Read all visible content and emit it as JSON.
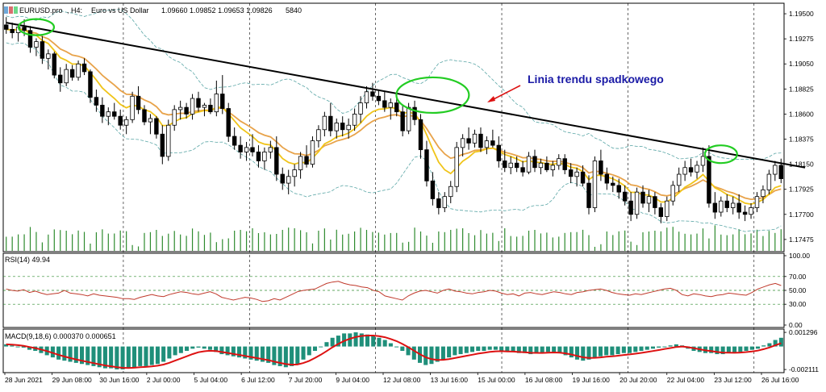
{
  "header": {
    "symbol": "EURUSD.pro",
    "timeframe": "H4",
    "description": "Euro vs US Dollar",
    "ohlc": "1.09660 1.09852 1.09653 1.09826",
    "volume": "5840"
  },
  "colors": {
    "bull": "#ffffff",
    "bear": "#000000",
    "ma_fast": "#f0c419",
    "ma_slow": "#e8a34a",
    "bands": "#5aa6a6",
    "trendline": "#000000",
    "circles": "#22cc22",
    "arrow": "#dd1111",
    "annotation": "#1a1aa6",
    "volume": "#2e8b2e",
    "rsi": "#c0392b",
    "macd_hist": "#1f8f7a",
    "macd_signal": "#dd1111",
    "grid": "#000000"
  },
  "annotation": {
    "text": "Linia trendu spadkowego"
  },
  "chart_data": [
    {
      "type": "candlestick",
      "panel": "price",
      "title": "EURUSD.pro, H4: Euro vs US Dollar 1.09660 1.09852 1.09653 1.09826 5840",
      "y_ticks": [
        1.195,
        1.19275,
        1.1905,
        1.18825,
        1.186,
        1.18375,
        1.1815,
        1.17925,
        1.177,
        1.17475
      ],
      "y_tick_labels": [
        "1.19500",
        "1.19275",
        "1.19050",
        "1.18825",
        "1.18600",
        "1.18375",
        "1.18150",
        "1.17925",
        "1.17700",
        "1.17475"
      ],
      "ylim": [
        1.1738,
        1.1958
      ],
      "x_labels": [
        "28 Jun 2021",
        "29 Jun 08:00",
        "30 Jun 16:00",
        "2 Jul 00:00",
        "5 Jul 04:00",
        "6 Jul 12:00",
        "7 Jul 20:00",
        "9 Jul 04:00",
        "12 Jul 08:00",
        "13 Jul 16:00",
        "15 Jul 00:00",
        "16 Jul 08:00",
        "19 Jul 16:00",
        "20 Jul 20:00",
        "22 Jul 04:00",
        "23 Jul 12:00",
        "26 Jul 16:00"
      ],
      "candles": [
        [
          1.194,
          1.1947,
          1.1932,
          1.1936
        ],
        [
          1.1936,
          1.1942,
          1.1928,
          1.1933
        ],
        [
          1.1933,
          1.1941,
          1.1925,
          1.1938
        ],
        [
          1.1938,
          1.1945,
          1.193,
          1.1935
        ],
        [
          1.1935,
          1.1939,
          1.1915,
          1.192
        ],
        [
          1.192,
          1.1928,
          1.1912,
          1.1925
        ],
        [
          1.1925,
          1.193,
          1.1905,
          1.191
        ],
        [
          1.191,
          1.1918,
          1.19,
          1.1914
        ],
        [
          1.1914,
          1.1916,
          1.1892,
          1.1895
        ],
        [
          1.1895,
          1.1902,
          1.188,
          1.1888
        ],
        [
          1.1888,
          1.1905,
          1.1885,
          1.19
        ],
        [
          1.19,
          1.1904,
          1.189,
          1.1893
        ],
        [
          1.1893,
          1.1908,
          1.189,
          1.1905
        ],
        [
          1.1905,
          1.191,
          1.1895,
          1.1898
        ],
        [
          1.1898,
          1.19,
          1.187,
          1.1875
        ],
        [
          1.1875,
          1.1882,
          1.1862,
          1.1868
        ],
        [
          1.1868,
          1.1875,
          1.1852,
          1.1858
        ],
        [
          1.1858,
          1.1866,
          1.185,
          1.1862
        ],
        [
          1.1862,
          1.187,
          1.1855,
          1.1858
        ],
        [
          1.1858,
          1.1864,
          1.1846,
          1.185
        ],
        [
          1.185,
          1.1858,
          1.1842,
          1.1855
        ],
        [
          1.1855,
          1.188,
          1.1852,
          1.1876
        ],
        [
          1.1876,
          1.1885,
          1.186,
          1.1864
        ],
        [
          1.1864,
          1.1868,
          1.185,
          1.1853
        ],
        [
          1.1853,
          1.186,
          1.1842,
          1.1856
        ],
        [
          1.1856,
          1.1858,
          1.1838,
          1.1842
        ],
        [
          1.1842,
          1.185,
          1.1815,
          1.1822
        ],
        [
          1.1822,
          1.1855,
          1.1818,
          1.185
        ],
        [
          1.185,
          1.1868,
          1.1845,
          1.1864
        ],
        [
          1.1864,
          1.1872,
          1.1855,
          1.1866
        ],
        [
          1.1866,
          1.187,
          1.1856,
          1.186
        ],
        [
          1.186,
          1.1878,
          1.1855,
          1.1874
        ],
        [
          1.1874,
          1.188,
          1.1862,
          1.1866
        ],
        [
          1.1866,
          1.187,
          1.1858,
          1.1868
        ],
        [
          1.1868,
          1.1874,
          1.186,
          1.1862
        ],
        [
          1.1862,
          1.189,
          1.1858,
          1.1878
        ],
        [
          1.1878,
          1.1895,
          1.186,
          1.1865
        ],
        [
          1.1865,
          1.187,
          1.1835,
          1.184
        ],
        [
          1.184,
          1.1848,
          1.1828,
          1.1832
        ],
        [
          1.1832,
          1.184,
          1.182,
          1.1826
        ],
        [
          1.1826,
          1.1835,
          1.1818,
          1.183
        ],
        [
          1.183,
          1.1842,
          1.1822,
          1.1826
        ],
        [
          1.1826,
          1.1832,
          1.1812,
          1.1818
        ],
        [
          1.1818,
          1.183,
          1.181,
          1.1826
        ],
        [
          1.1826,
          1.1836,
          1.182,
          1.183
        ],
        [
          1.183,
          1.184,
          1.18,
          1.1806
        ],
        [
          1.1806,
          1.1812,
          1.1792,
          1.1798
        ],
        [
          1.1798,
          1.181,
          1.1788,
          1.1804
        ],
        [
          1.1804,
          1.1815,
          1.1795,
          1.181
        ],
        [
          1.181,
          1.1826,
          1.1802,
          1.1822
        ],
        [
          1.1822,
          1.1832,
          1.1812,
          1.1815
        ],
        [
          1.1815,
          1.184,
          1.1812,
          1.1836
        ],
        [
          1.1836,
          1.185,
          1.183,
          1.1846
        ],
        [
          1.1846,
          1.1862,
          1.184,
          1.1858
        ],
        [
          1.1858,
          1.187,
          1.184,
          1.1845
        ],
        [
          1.1845,
          1.1856,
          1.1838,
          1.1852
        ],
        [
          1.1852,
          1.1858,
          1.184,
          1.1846
        ],
        [
          1.1846,
          1.1856,
          1.1838,
          1.185
        ],
        [
          1.185,
          1.1865,
          1.1845,
          1.186
        ],
        [
          1.186,
          1.1876,
          1.1852,
          1.187
        ],
        [
          1.187,
          1.1885,
          1.1865,
          1.188
        ],
        [
          1.188,
          1.1888,
          1.1872,
          1.1876
        ],
        [
          1.1876,
          1.1882,
          1.1868,
          1.1872
        ],
        [
          1.1872,
          1.188,
          1.1862,
          1.1866
        ],
        [
          1.1866,
          1.1874,
          1.1855,
          1.187
        ],
        [
          1.187,
          1.1876,
          1.1858,
          1.1862
        ],
        [
          1.1862,
          1.1868,
          1.184,
          1.1845
        ],
        [
          1.1845,
          1.187,
          1.1842,
          1.1866
        ],
        [
          1.1866,
          1.1872,
          1.185,
          1.1855
        ],
        [
          1.1855,
          1.186,
          1.182,
          1.1828
        ],
        [
          1.1828,
          1.1836,
          1.1795,
          1.18
        ],
        [
          1.18,
          1.1808,
          1.1778,
          1.1784
        ],
        [
          1.1784,
          1.179,
          1.177,
          1.1776
        ],
        [
          1.1776,
          1.179,
          1.1772,
          1.1786
        ],
        [
          1.1786,
          1.18,
          1.178,
          1.1795
        ],
        [
          1.1795,
          1.1835,
          1.179,
          1.183
        ],
        [
          1.183,
          1.1842,
          1.1822,
          1.1838
        ],
        [
          1.1838,
          1.1848,
          1.1828,
          1.1834
        ],
        [
          1.1834,
          1.1846,
          1.183,
          1.1842
        ],
        [
          1.1842,
          1.1848,
          1.1826,
          1.183
        ],
        [
          1.183,
          1.184,
          1.1824,
          1.1836
        ],
        [
          1.1836,
          1.1846,
          1.183,
          1.1832
        ],
        [
          1.1832,
          1.184,
          1.1812,
          1.1818
        ],
        [
          1.1818,
          1.1828,
          1.1808,
          1.1812
        ],
        [
          1.1812,
          1.1822,
          1.1806,
          1.1816
        ],
        [
          1.1816,
          1.1822,
          1.1808,
          1.1812
        ],
        [
          1.1812,
          1.1818,
          1.1804,
          1.1808
        ],
        [
          1.1808,
          1.1826,
          1.1806,
          1.1822
        ],
        [
          1.1822,
          1.1828,
          1.1808,
          1.1812
        ],
        [
          1.1812,
          1.182,
          1.1806,
          1.1816
        ],
        [
          1.1816,
          1.1822,
          1.1808,
          1.181
        ],
        [
          1.181,
          1.1818,
          1.1804,
          1.1814
        ],
        [
          1.1814,
          1.1824,
          1.181,
          1.182
        ],
        [
          1.182,
          1.1824,
          1.1806,
          1.181
        ],
        [
          1.181,
          1.1816,
          1.1798,
          1.1804
        ],
        [
          1.1804,
          1.1812,
          1.1795,
          1.1808
        ],
        [
          1.1808,
          1.1814,
          1.1795,
          1.1798
        ],
        [
          1.1798,
          1.1805,
          1.177,
          1.1776
        ],
        [
          1.1776,
          1.1822,
          1.1772,
          1.1818
        ],
        [
          1.1818,
          1.1828,
          1.18,
          1.1806
        ],
        [
          1.1806,
          1.1812,
          1.1792,
          1.1798
        ],
        [
          1.1798,
          1.1804,
          1.179,
          1.1796
        ],
        [
          1.1796,
          1.1802,
          1.1784,
          1.179
        ],
        [
          1.179,
          1.1796,
          1.1778,
          1.1782
        ],
        [
          1.1782,
          1.179,
          1.1764,
          1.177
        ],
        [
          1.177,
          1.1794,
          1.1766,
          1.179
        ],
        [
          1.179,
          1.1796,
          1.1776,
          1.178
        ],
        [
          1.178,
          1.1792,
          1.1772,
          1.1786
        ],
        [
          1.1786,
          1.179,
          1.177,
          1.1776
        ],
        [
          1.1776,
          1.178,
          1.1762,
          1.1768
        ],
        [
          1.1768,
          1.1786,
          1.1764,
          1.1782
        ],
        [
          1.1782,
          1.18,
          1.1778,
          1.1796
        ],
        [
          1.1796,
          1.1812,
          1.179,
          1.1806
        ],
        [
          1.1806,
          1.1818,
          1.18,
          1.1812
        ],
        [
          1.1812,
          1.182,
          1.1804,
          1.1808
        ],
        [
          1.1808,
          1.1818,
          1.1802,
          1.1814
        ],
        [
          1.1814,
          1.183,
          1.1808,
          1.1822
        ],
        [
          1.1822,
          1.1832,
          1.1776,
          1.178
        ],
        [
          1.178,
          1.179,
          1.1766,
          1.1772
        ],
        [
          1.1772,
          1.1786,
          1.1768,
          1.1782
        ],
        [
          1.1782,
          1.1788,
          1.1772,
          1.1776
        ],
        [
          1.1776,
          1.1786,
          1.177,
          1.178
        ],
        [
          1.178,
          1.1788,
          1.1766,
          1.1772
        ],
        [
          1.1772,
          1.1778,
          1.1764,
          1.177
        ],
        [
          1.177,
          1.178,
          1.1766,
          1.1776
        ],
        [
          1.1776,
          1.179,
          1.1772,
          1.1786
        ],
        [
          1.1786,
          1.1796,
          1.178,
          1.1792
        ],
        [
          1.1792,
          1.181,
          1.1788,
          1.1806
        ],
        [
          1.1806,
          1.1818,
          1.18,
          1.1814
        ],
        [
          1.1814,
          1.182,
          1.1798,
          1.1802
        ]
      ],
      "trendline": {
        "from": [
          0,
          1.1942
        ],
        "to": [
          133,
          1.1812
        ]
      },
      "circles": [
        {
          "x": 5.0,
          "y": 1.1938
        },
        {
          "x": 71.0,
          "y": 1.1877
        },
        {
          "x": 119.0,
          "y": 1.1824
        }
      ],
      "annotation": "Linia trendu spadkowego"
    },
    {
      "type": "line",
      "panel": "rsi",
      "title": "RSI(14) 49.94",
      "y_ticks": [
        100.0,
        70.0,
        50.0,
        30.0,
        0.0
      ],
      "y_tick_labels": [
        "100.00",
        "70.00",
        "50.00",
        "30.00",
        "0.00"
      ],
      "ylim": [
        0,
        100
      ],
      "series": [
        {
          "name": "RSI(14)",
          "values": [
            52,
            50,
            49,
            51,
            47,
            49,
            46,
            44,
            45,
            46,
            50,
            46,
            45,
            44,
            42,
            45,
            43,
            42,
            41,
            40,
            38,
            38,
            37,
            40,
            42,
            44,
            42,
            41,
            44,
            46,
            48,
            47,
            45,
            44,
            46,
            48,
            45,
            40,
            38,
            36,
            38,
            40,
            39,
            37,
            34,
            35,
            38,
            36,
            40,
            44,
            48,
            50,
            51,
            52,
            56,
            60,
            62,
            63,
            60,
            58,
            57,
            55,
            54,
            50,
            48,
            42,
            40,
            38,
            36,
            42,
            46,
            49,
            50,
            48,
            46,
            50,
            52,
            49,
            48,
            46,
            45,
            47,
            48,
            50,
            49,
            46,
            44,
            45,
            42,
            46,
            47,
            45,
            44,
            46,
            48,
            47,
            45,
            44,
            47,
            48,
            50,
            51,
            52,
            50,
            47,
            45,
            44,
            43,
            45,
            44,
            46,
            48,
            50,
            52,
            53,
            50,
            44,
            42,
            45,
            44,
            42,
            41,
            43,
            44,
            46,
            45,
            44,
            43,
            47,
            52,
            55,
            58,
            60,
            57
          ]
        }
      ]
    },
    {
      "type": "bar",
      "panel": "macd",
      "title": "MACD(9,18,6) 0.000370 0.000651",
      "y_ticks": [
        0.001296,
        -0.002111
      ],
      "y_tick_labels": [
        "0.001296",
        "-0.002111"
      ],
      "ylim": [
        -0.00225,
        0.00145
      ],
      "series": [
        {
          "name": "MACD(9,18,6)",
          "values": [
            0.0002,
            0.0001,
            0.0,
            -0.0001,
            -0.0003,
            -0.0004,
            -0.0006,
            -0.0008,
            -0.001,
            -0.0012,
            -0.0013,
            -0.0014,
            -0.0015,
            -0.0016,
            -0.0017,
            -0.0018,
            -0.0019,
            -0.002,
            -0.002,
            -0.0021,
            -0.0021,
            -0.002,
            -0.0019,
            -0.0018,
            -0.0018,
            -0.0017,
            -0.0016,
            -0.0014,
            -0.0011,
            -0.0008,
            -0.0006,
            -0.0004,
            -0.0002,
            -0.0001,
            -0.0002,
            -0.0003,
            -0.0005,
            -0.0007,
            -0.0008,
            -0.0009,
            -0.001,
            -0.0011,
            -0.0012,
            -0.0013,
            -0.0014,
            -0.0015,
            -0.0017,
            -0.0018,
            -0.0019,
            -0.0018,
            -0.0016,
            -0.0012,
            -0.0008,
            -0.0004,
            0.0,
            0.0004,
            0.0008,
            0.001,
            0.0012,
            0.0012,
            0.0013,
            0.0012,
            0.0011,
            0.001,
            0.0008,
            0.0006,
            0.0003,
            0.0,
            -0.0004,
            -0.0008,
            -0.0012,
            -0.0015,
            -0.0017,
            -0.0016,
            -0.0014,
            -0.0012,
            -0.001,
            -0.0008,
            -0.0007,
            -0.0006,
            -0.0005,
            -0.0004,
            -0.0004,
            -0.0003,
            -0.0003,
            -0.0004,
            -0.0005,
            -0.0005,
            -0.0006,
            -0.0006,
            -0.0007,
            -0.0006,
            -0.0006,
            -0.0005,
            -0.0005,
            -0.0006,
            -0.0008,
            -0.001,
            -0.0012,
            -0.0013,
            -0.0012,
            -0.001,
            -0.0009,
            -0.0008,
            -0.0008,
            -0.0007,
            -0.0006,
            -0.0006,
            -0.0005,
            -0.0004,
            -0.0003,
            -0.0002,
            -0.0001,
            0.0,
            0.0001,
            0.0002,
            0.0001,
            -0.0002,
            -0.0004,
            -0.0005,
            -0.0006,
            -0.0006,
            -0.0007,
            -0.0007,
            -0.0006,
            -0.0006,
            -0.0005,
            -0.0004,
            -0.0003,
            -0.0002,
            0.0001,
            0.0003,
            0.0006,
            0.0008
          ]
        }
      ]
    }
  ]
}
